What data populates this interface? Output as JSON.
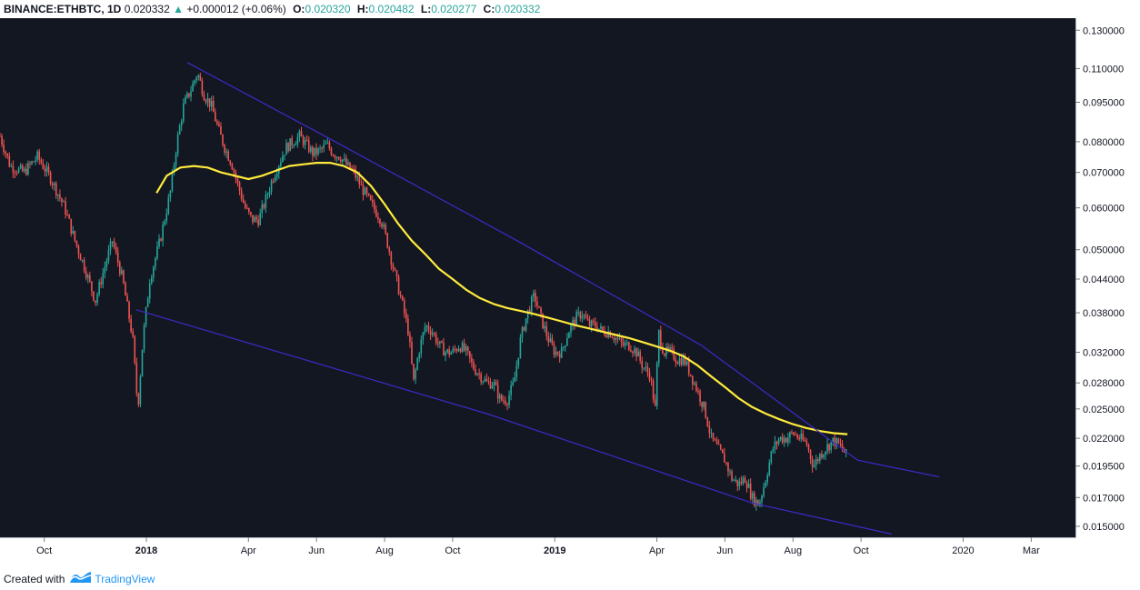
{
  "header": {
    "symbol": "BINANCE:ETHBTC, 1D",
    "last": "0.020332",
    "arrow": "▲",
    "change": "+0.000012 (+0.06%)",
    "o_label": "O:",
    "o_value": "0.020320",
    "h_label": "H:",
    "h_value": "0.020482",
    "l_label": "L:",
    "l_value": "0.020277",
    "c_label": "C:",
    "c_value": "0.020332"
  },
  "footer": {
    "created_with": "Created with",
    "brand": "TradingView"
  },
  "colors": {
    "background": "#131722",
    "up": "#26a69a",
    "down": "#ef5350",
    "ma": "#ffeb3b",
    "trendline": "#3f28c9"
  },
  "chart_data": {
    "type": "line",
    "title": "BINANCE:ETHBTC, 1D",
    "xlabel": "",
    "ylabel": "",
    "x_axis_ticks": [
      {
        "label": "Oct",
        "month": 9
      },
      {
        "label": "2018",
        "month": 12,
        "bold": true
      },
      {
        "label": "Apr",
        "month": 15
      },
      {
        "label": "Jun",
        "month": 17
      },
      {
        "label": "Aug",
        "month": 19
      },
      {
        "label": "Oct",
        "month": 21
      },
      {
        "label": "2019",
        "month": 24,
        "bold": true
      },
      {
        "label": "Apr",
        "month": 27
      },
      {
        "label": "Jun",
        "month": 29
      },
      {
        "label": "Aug",
        "month": 31
      },
      {
        "label": "Oct",
        "month": 33
      },
      {
        "label": "2020",
        "month": 36
      },
      {
        "label": "Mar",
        "month": 38
      }
    ],
    "y_axis_ticks": [
      {
        "label": "0.130000",
        "value": 0.13
      },
      {
        "label": "0.110000",
        "value": 0.11
      },
      {
        "label": "0.095000",
        "value": 0.095
      },
      {
        "label": "0.080000",
        "value": 0.08
      },
      {
        "label": "0.070000",
        "value": 0.07
      },
      {
        "label": "0.060000",
        "value": 0.06
      },
      {
        "label": "0.050000",
        "value": 0.05
      },
      {
        "label": "0.044000",
        "value": 0.044
      },
      {
        "label": "0.038000",
        "value": 0.038
      },
      {
        "label": "0.032000",
        "value": 0.032
      },
      {
        "label": "0.028000",
        "value": 0.028
      },
      {
        "label": "0.025000",
        "value": 0.025
      },
      {
        "label": "0.022000",
        "value": 0.022
      },
      {
        "label": "0.019500",
        "value": 0.0195
      },
      {
        "label": "0.017000",
        "value": 0.017
      },
      {
        "label": "0.015000",
        "value": 0.015
      }
    ],
    "y_scale": "log",
    "x_range_month": [
      7.7,
      39.3
    ],
    "y_range": [
      0.0143,
      0.137
    ],
    "series": [
      {
        "name": "ETHBTC price (close)",
        "kind": "candles",
        "points": [
          [
            7.7,
            0.082
          ],
          [
            8.0,
            0.072
          ],
          [
            8.4,
            0.07
          ],
          [
            8.8,
            0.075
          ],
          [
            9.2,
            0.068
          ],
          [
            9.6,
            0.06
          ],
          [
            9.9,
            0.052
          ],
          [
            10.2,
            0.046
          ],
          [
            10.5,
            0.04
          ],
          [
            10.8,
            0.047
          ],
          [
            11.0,
            0.052
          ],
          [
            11.3,
            0.044
          ],
          [
            11.6,
            0.034
          ],
          [
            11.75,
            0.025
          ],
          [
            11.9,
            0.034
          ],
          [
            12.1,
            0.044
          ],
          [
            12.4,
            0.052
          ],
          [
            12.7,
            0.064
          ],
          [
            12.9,
            0.08
          ],
          [
            13.1,
            0.094
          ],
          [
            13.3,
            0.1
          ],
          [
            13.5,
            0.108
          ],
          [
            13.7,
            0.098
          ],
          [
            13.9,
            0.094
          ],
          [
            14.1,
            0.085
          ],
          [
            14.3,
            0.078
          ],
          [
            14.5,
            0.073
          ],
          [
            14.7,
            0.066
          ],
          [
            14.9,
            0.06
          ],
          [
            15.1,
            0.057
          ],
          [
            15.3,
            0.057
          ],
          [
            15.5,
            0.062
          ],
          [
            15.7,
            0.068
          ],
          [
            15.9,
            0.073
          ],
          [
            16.1,
            0.078
          ],
          [
            16.3,
            0.08
          ],
          [
            16.5,
            0.082
          ],
          [
            16.7,
            0.079
          ],
          [
            16.9,
            0.076
          ],
          [
            17.1,
            0.077
          ],
          [
            17.3,
            0.079
          ],
          [
            17.5,
            0.076
          ],
          [
            17.7,
            0.075
          ],
          [
            17.9,
            0.072
          ],
          [
            18.1,
            0.07
          ],
          [
            18.3,
            0.066
          ],
          [
            18.6,
            0.061
          ],
          [
            18.9,
            0.057
          ],
          [
            19.1,
            0.051
          ],
          [
            19.3,
            0.045
          ],
          [
            19.5,
            0.04
          ],
          [
            19.7,
            0.035
          ],
          [
            19.85,
            0.028
          ],
          [
            20.0,
            0.032
          ],
          [
            20.2,
            0.036
          ],
          [
            20.4,
            0.035
          ],
          [
            20.6,
            0.033
          ],
          [
            20.8,
            0.032
          ],
          [
            21.0,
            0.032
          ],
          [
            21.2,
            0.033
          ],
          [
            21.4,
            0.032
          ],
          [
            21.6,
            0.03
          ],
          [
            21.8,
            0.029
          ],
          [
            22.0,
            0.028
          ],
          [
            22.2,
            0.028
          ],
          [
            22.4,
            0.026
          ],
          [
            22.6,
            0.026
          ],
          [
            22.8,
            0.028
          ],
          [
            23.0,
            0.034
          ],
          [
            23.2,
            0.038
          ],
          [
            23.4,
            0.041
          ],
          [
            23.6,
            0.037
          ],
          [
            23.8,
            0.034
          ],
          [
            24.0,
            0.032
          ],
          [
            24.2,
            0.032
          ],
          [
            24.4,
            0.035
          ],
          [
            24.6,
            0.037
          ],
          [
            24.8,
            0.038
          ],
          [
            25.0,
            0.036
          ],
          [
            25.2,
            0.036
          ],
          [
            25.4,
            0.035
          ],
          [
            25.6,
            0.035
          ],
          [
            25.8,
            0.034
          ],
          [
            26.0,
            0.033
          ],
          [
            26.2,
            0.033
          ],
          [
            26.4,
            0.032
          ],
          [
            26.6,
            0.03
          ],
          [
            26.8,
            0.029
          ],
          [
            26.95,
            0.025
          ],
          [
            27.05,
            0.035
          ],
          [
            27.2,
            0.032
          ],
          [
            27.4,
            0.032
          ],
          [
            27.6,
            0.031
          ],
          [
            27.8,
            0.031
          ],
          [
            28.0,
            0.029
          ],
          [
            28.2,
            0.027
          ],
          [
            28.4,
            0.025
          ],
          [
            28.6,
            0.022
          ],
          [
            28.8,
            0.021
          ],
          [
            29.0,
            0.02
          ],
          [
            29.2,
            0.0185
          ],
          [
            29.4,
            0.018
          ],
          [
            29.6,
            0.0185
          ],
          [
            29.8,
            0.017
          ],
          [
            30.0,
            0.0165
          ],
          [
            30.2,
            0.0185
          ],
          [
            30.4,
            0.021
          ],
          [
            30.6,
            0.022
          ],
          [
            30.8,
            0.022
          ],
          [
            31.0,
            0.0225
          ],
          [
            31.2,
            0.022
          ],
          [
            31.4,
            0.0215
          ],
          [
            31.6,
            0.0195
          ],
          [
            31.8,
            0.0205
          ],
          [
            32.0,
            0.0212
          ],
          [
            32.2,
            0.0218
          ],
          [
            32.4,
            0.0212
          ],
          [
            32.6,
            0.0203
          ]
        ]
      },
      {
        "name": "Moving average",
        "kind": "line",
        "color": "#ffeb3b",
        "points": [
          [
            12.3,
            0.064
          ],
          [
            12.6,
            0.069
          ],
          [
            13.0,
            0.0715
          ],
          [
            13.4,
            0.072
          ],
          [
            13.8,
            0.0715
          ],
          [
            14.2,
            0.07
          ],
          [
            14.6,
            0.069
          ],
          [
            15.0,
            0.068
          ],
          [
            15.4,
            0.069
          ],
          [
            15.8,
            0.0705
          ],
          [
            16.2,
            0.072
          ],
          [
            16.6,
            0.0725
          ],
          [
            17.0,
            0.073
          ],
          [
            17.4,
            0.073
          ],
          [
            17.8,
            0.072
          ],
          [
            18.2,
            0.07
          ],
          [
            18.6,
            0.066
          ],
          [
            19.0,
            0.061
          ],
          [
            19.4,
            0.056
          ],
          [
            19.8,
            0.052
          ],
          [
            20.2,
            0.049
          ],
          [
            20.6,
            0.046
          ],
          [
            21.0,
            0.044
          ],
          [
            21.4,
            0.042
          ],
          [
            21.8,
            0.0405
          ],
          [
            22.2,
            0.0395
          ],
          [
            22.6,
            0.0388
          ],
          [
            23.0,
            0.0383
          ],
          [
            23.4,
            0.0378
          ],
          [
            23.8,
            0.0372
          ],
          [
            24.2,
            0.0366
          ],
          [
            24.6,
            0.036
          ],
          [
            25.0,
            0.0355
          ],
          [
            25.4,
            0.035
          ],
          [
            25.8,
            0.0345
          ],
          [
            26.2,
            0.034
          ],
          [
            26.6,
            0.0334
          ],
          [
            27.0,
            0.0328
          ],
          [
            27.4,
            0.0322
          ],
          [
            27.8,
            0.0314
          ],
          [
            28.2,
            0.0302
          ],
          [
            28.6,
            0.0288
          ],
          [
            29.0,
            0.0275
          ],
          [
            29.4,
            0.0262
          ],
          [
            29.8,
            0.0252
          ],
          [
            30.2,
            0.0245
          ],
          [
            30.6,
            0.0239
          ],
          [
            31.0,
            0.0234
          ],
          [
            31.4,
            0.023
          ],
          [
            31.8,
            0.0227
          ],
          [
            32.2,
            0.0225
          ],
          [
            32.6,
            0.0224
          ]
        ]
      },
      {
        "name": "Upper trendline",
        "kind": "line",
        "color": "#3f28c9",
        "points": [
          [
            13.2,
            0.113
          ],
          [
            17.4,
            0.081
          ],
          [
            22.9,
            0.052
          ],
          [
            28.3,
            0.033
          ],
          [
            32.9,
            0.02
          ],
          [
            35.3,
            0.0186
          ]
        ]
      },
      {
        "name": "Lower trendline",
        "kind": "line",
        "color": "#3f28c9",
        "points": [
          [
            11.7,
            0.0385
          ],
          [
            22.0,
            0.0245
          ],
          [
            29.8,
            0.0166
          ],
          [
            33.9,
            0.0145
          ]
        ]
      }
    ]
  }
}
